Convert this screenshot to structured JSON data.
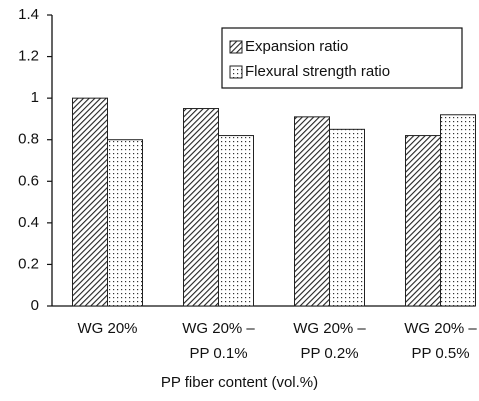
{
  "chart_data": {
    "type": "bar",
    "x_label": "PP fiber content (vol.%)",
    "categories": [
      "WG 20%",
      "WG 20% –\nPP 0.1%",
      "WG 20% –\nPP 0.2%",
      "WG 20% –\nPP 0.5%"
    ],
    "series": [
      {
        "name": "Expansion ratio",
        "pattern": "hatch",
        "color": "#222222",
        "values": [
          1.0,
          0.95,
          0.91,
          0.82
        ]
      },
      {
        "name": "Flexural strength ratio",
        "pattern": "dots",
        "color": "#222222",
        "values": [
          0.8,
          0.82,
          0.85,
          0.92
        ]
      }
    ],
    "ylim": [
      0,
      1.4
    ],
    "yticks": [
      0,
      0.2,
      0.4,
      0.6,
      0.8,
      1,
      1.2,
      1.4
    ],
    "grid": false,
    "legend": "upper right"
  }
}
